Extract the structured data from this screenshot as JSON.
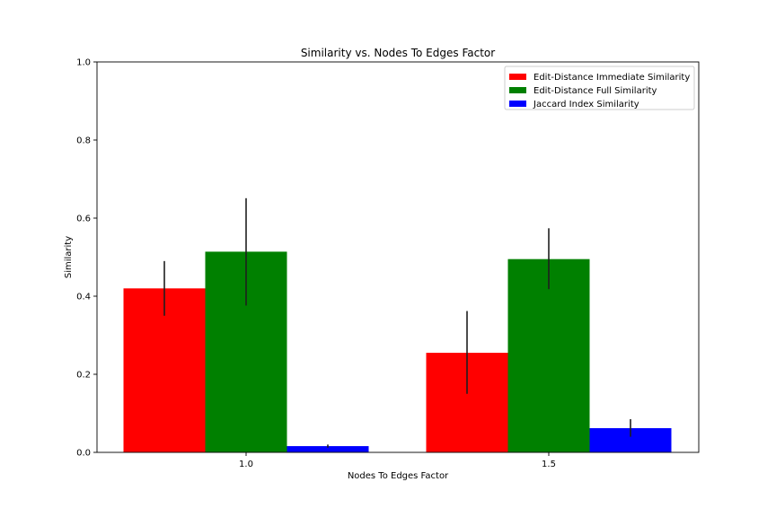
{
  "chart_data": {
    "type": "bar",
    "title": "Similarity vs. Nodes To Edges Factor",
    "xlabel": "Nodes To Edges Factor",
    "ylabel": "Similarity",
    "categories": [
      "1.0",
      "1.5"
    ],
    "ylim": [
      0,
      1.0
    ],
    "yticks": [
      "0.0",
      "0.2",
      "0.4",
      "0.6",
      "0.8",
      "1.0"
    ],
    "grid": false,
    "legend_position": "top-right",
    "series": [
      {
        "name": "Edit-Distance Immediate Similarity",
        "color": "#ff0000",
        "values": [
          0.42,
          0.255
        ],
        "error_low": [
          0.35,
          0.15
        ],
        "error_high": [
          0.49,
          0.362
        ]
      },
      {
        "name": "Edit-Distance Full Similarity",
        "color": "#008000",
        "values": [
          0.514,
          0.495
        ],
        "error_low": [
          0.376,
          0.418
        ],
        "error_high": [
          0.651,
          0.574
        ]
      },
      {
        "name": "Jaccard Index Similarity",
        "color": "#0000ff",
        "values": [
          0.016,
          0.062
        ],
        "error_low": [
          0.012,
          0.04
        ],
        "error_high": [
          0.02,
          0.085
        ]
      }
    ]
  }
}
